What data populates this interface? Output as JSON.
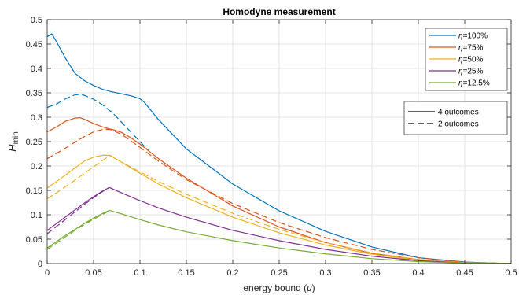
{
  "chart_data": {
    "type": "line",
    "title": "Homodyne measurement",
    "xlabel": "energy bound (",
    "xlabel_symbol": "μ",
    "xlabel_close": ")",
    "ylabel_main": "H",
    "ylabel_sub": "min",
    "xlim": [
      0,
      0.5
    ],
    "ylim": [
      0,
      0.5
    ],
    "xticks": [
      "0",
      "0.05",
      "0.1",
      "0.15",
      "0.2",
      "0.25",
      "0.3",
      "0.35",
      "0.4",
      "0.45",
      "0.5"
    ],
    "yticks": [
      "0",
      "0.05",
      "0.1",
      "0.15",
      "0.2",
      "0.25",
      "0.3",
      "0.35",
      "0.4",
      "0.45",
      "0.5"
    ],
    "grid": true,
    "legend_eta": {
      "placement": "top-right",
      "entries": [
        {
          "symbol": "η",
          "text": "=100%",
          "color": "#0072BD"
        },
        {
          "symbol": "η",
          "text": "=75%",
          "color": "#D95319"
        },
        {
          "symbol": "η",
          "text": "=50%",
          "color": "#EDB120"
        },
        {
          "symbol": "η",
          "text": "=25%",
          "color": "#7E2F8E"
        },
        {
          "symbol": "η",
          "text": "=12.5%",
          "color": "#77AC30"
        }
      ]
    },
    "legend_style": {
      "placement": "right",
      "entries": [
        {
          "text": "4 outcomes",
          "dash": "solid"
        },
        {
          "text": "2 outcomes",
          "dash": "dashed"
        }
      ]
    },
    "series": [
      {
        "eta": "100%",
        "outcomes": "4",
        "color": "#0072BD",
        "dash": "solid",
        "x": [
          0,
          0.005,
          0.01,
          0.02,
          0.03,
          0.04,
          0.05,
          0.06,
          0.07,
          0.08,
          0.09,
          0.1,
          0.105,
          0.11,
          0.12,
          0.15,
          0.2,
          0.25,
          0.3,
          0.35,
          0.4,
          0.45,
          0.5
        ],
        "y": [
          0.465,
          0.471,
          0.455,
          0.42,
          0.39,
          0.375,
          0.365,
          0.357,
          0.352,
          0.348,
          0.344,
          0.338,
          0.33,
          0.318,
          0.295,
          0.235,
          0.163,
          0.108,
          0.066,
          0.034,
          0.012,
          0.003,
          0
        ]
      },
      {
        "eta": "100%",
        "outcomes": "2",
        "color": "#0072BD",
        "dash": "dashed",
        "x": [
          0,
          0.01,
          0.02,
          0.03,
          0.035,
          0.04,
          0.05,
          0.06,
          0.065,
          0.07,
          0.08,
          0.09,
          0.1,
          0.11
        ],
        "y": [
          0.32,
          0.327,
          0.338,
          0.346,
          0.347,
          0.345,
          0.337,
          0.325,
          0.317,
          0.31,
          0.29,
          0.27,
          0.25,
          0.23
        ]
      },
      {
        "eta": "75%",
        "outcomes": "4",
        "color": "#D95319",
        "dash": "solid",
        "x": [
          0,
          0.01,
          0.02,
          0.03,
          0.035,
          0.04,
          0.05,
          0.06,
          0.067,
          0.07,
          0.08,
          0.09,
          0.1,
          0.12,
          0.15,
          0.2,
          0.25,
          0.3,
          0.35,
          0.4,
          0.45,
          0.5
        ],
        "y": [
          0.27,
          0.28,
          0.292,
          0.298,
          0.299,
          0.296,
          0.287,
          0.28,
          0.276,
          0.275,
          0.269,
          0.258,
          0.245,
          0.215,
          0.175,
          0.118,
          0.075,
          0.043,
          0.021,
          0.008,
          0.002,
          0
        ]
      },
      {
        "eta": "75%",
        "outcomes": "2",
        "color": "#D95319",
        "dash": "dashed",
        "x": [
          0,
          0.01,
          0.02,
          0.03,
          0.04,
          0.05,
          0.06,
          0.068,
          0.08,
          0.09,
          0.1,
          0.12,
          0.15,
          0.2,
          0.25,
          0.3,
          0.35,
          0.4,
          0.45,
          0.5
        ],
        "y": [
          0.215,
          0.226,
          0.237,
          0.249,
          0.26,
          0.27,
          0.275,
          0.275,
          0.265,
          0.252,
          0.238,
          0.21,
          0.172,
          0.123,
          0.084,
          0.053,
          0.029,
          0.012,
          0.003,
          0
        ]
      },
      {
        "eta": "50%",
        "outcomes": "4",
        "color": "#EDB120",
        "dash": "solid",
        "x": [
          0,
          0.01,
          0.02,
          0.03,
          0.04,
          0.05,
          0.06,
          0.067,
          0.07,
          0.08,
          0.1,
          0.12,
          0.15,
          0.2,
          0.25,
          0.3,
          0.35,
          0.4,
          0.45,
          0.5
        ],
        "y": [
          0.155,
          0.168,
          0.182,
          0.196,
          0.21,
          0.218,
          0.222,
          0.222,
          0.219,
          0.208,
          0.185,
          0.163,
          0.135,
          0.095,
          0.063,
          0.038,
          0.019,
          0.007,
          0.002,
          0
        ]
      },
      {
        "eta": "50%",
        "outcomes": "2",
        "color": "#EDB120",
        "dash": "dashed",
        "x": [
          0,
          0.01,
          0.02,
          0.03,
          0.04,
          0.05,
          0.06,
          0.068,
          0.08,
          0.1,
          0.12,
          0.15,
          0.2,
          0.25,
          0.3,
          0.35,
          0.4,
          0.45,
          0.5
        ],
        "y": [
          0.133,
          0.145,
          0.158,
          0.171,
          0.185,
          0.198,
          0.212,
          0.222,
          0.208,
          0.188,
          0.168,
          0.142,
          0.103,
          0.07,
          0.043,
          0.022,
          0.008,
          0.002,
          0
        ]
      },
      {
        "eta": "25%",
        "outcomes": "4",
        "color": "#7E2F8E",
        "dash": "solid",
        "x": [
          0,
          0.01,
          0.02,
          0.03,
          0.04,
          0.05,
          0.06,
          0.067,
          0.08,
          0.1,
          0.12,
          0.15,
          0.2,
          0.25,
          0.3,
          0.35,
          0.4,
          0.45,
          0.5
        ],
        "y": [
          0.068,
          0.082,
          0.096,
          0.11,
          0.124,
          0.137,
          0.149,
          0.156,
          0.145,
          0.129,
          0.114,
          0.095,
          0.068,
          0.047,
          0.029,
          0.015,
          0.006,
          0.001,
          0
        ]
      },
      {
        "eta": "25%",
        "outcomes": "2",
        "color": "#7E2F8E",
        "dash": "dashed",
        "x": [
          0,
          0.01,
          0.02,
          0.03,
          0.04,
          0.05,
          0.06,
          0.067
        ],
        "y": [
          0.061,
          0.076,
          0.091,
          0.106,
          0.121,
          0.135,
          0.148,
          0.156
        ]
      },
      {
        "eta": "12.5%",
        "outcomes": "4",
        "color": "#77AC30",
        "dash": "solid",
        "x": [
          0,
          0.01,
          0.02,
          0.03,
          0.04,
          0.05,
          0.06,
          0.067,
          0.08,
          0.1,
          0.12,
          0.15,
          0.2,
          0.25,
          0.3,
          0.35,
          0.4,
          0.45,
          0.5
        ],
        "y": [
          0.032,
          0.045,
          0.058,
          0.07,
          0.082,
          0.093,
          0.103,
          0.109,
          0.102,
          0.09,
          0.079,
          0.065,
          0.047,
          0.032,
          0.02,
          0.01,
          0.004,
          0.001,
          0
        ]
      },
      {
        "eta": "12.5%",
        "outcomes": "2",
        "color": "#77AC30",
        "dash": "dashed",
        "x": [
          0,
          0.01,
          0.02,
          0.03,
          0.04,
          0.05,
          0.06,
          0.067
        ],
        "y": [
          0.029,
          0.042,
          0.055,
          0.068,
          0.08,
          0.091,
          0.101,
          0.108
        ]
      }
    ]
  }
}
